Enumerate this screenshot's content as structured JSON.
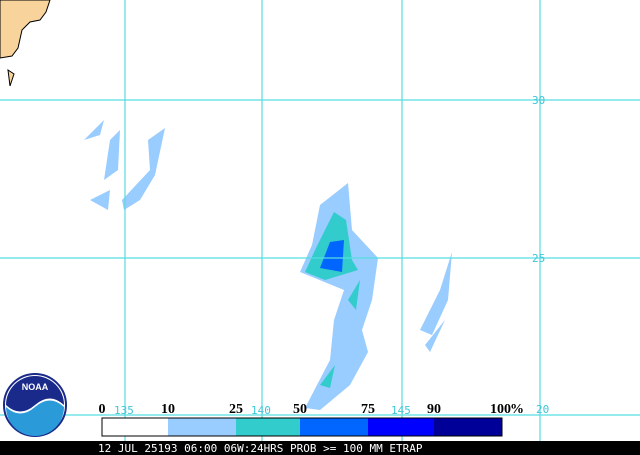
{
  "map": {
    "latitude_labels": [
      "30",
      "25",
      "20"
    ],
    "longitude_labels": [
      "135",
      "140",
      "145"
    ],
    "legend": {
      "labels": [
        "0",
        "10",
        "25",
        "50",
        "75",
        "90",
        "100"
      ],
      "unit": "%"
    },
    "logo": "NOAA",
    "footer": "12 JUL 25193 06:00 06W:24HRS PROB >= 100 MM ETRAP"
  }
}
